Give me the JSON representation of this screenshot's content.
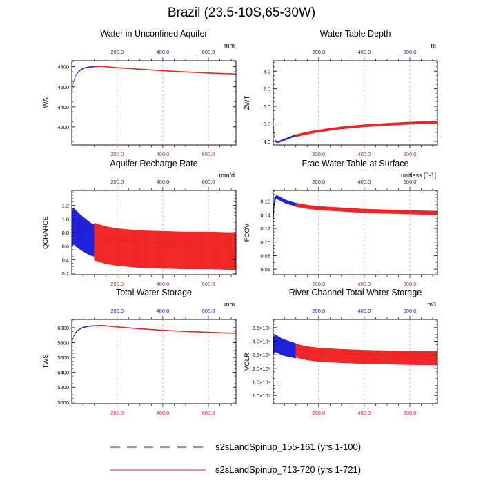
{
  "title": "Brazil (23.5-10S,65-30W)",
  "legend": {
    "items": [
      {
        "label": "s2sLandSpinup_155-161 (yrs 1-100)",
        "color": "#1a1adb",
        "dash": true
      },
      {
        "label": "s2sLandSpinup_713-720 (yrs 1-721)",
        "color": "#f02020",
        "dash": false
      }
    ]
  },
  "chart_data": [
    {
      "type": "line",
      "title": "Water in Unconfined Aquifer",
      "ylabel": "WA",
      "units": "mm",
      "xlim": [
        1,
        721
      ],
      "ylim": [
        4020,
        4860
      ],
      "yticks": [
        4200,
        4400,
        4600,
        4800
      ],
      "ytick_labels": [
        "4200",
        "4400",
        "4600",
        "4800"
      ],
      "top_ticks": [
        "200.0",
        "400.0",
        "600.0"
      ],
      "bottom_ticks": [
        "200.0",
        "400.0",
        "600.0"
      ],
      "series": [
        {
          "name": "s2sLandSpinup_155-161 (yrs 1-100)",
          "x": [
            1,
            5,
            10,
            20,
            30,
            45,
            60,
            80,
            100
          ],
          "y": [
            4520,
            4600,
            4660,
            4720,
            4750,
            4775,
            4790,
            4798,
            4800
          ]
        },
        {
          "name": "s2sLandSpinup_713-720 (yrs 1-721)",
          "x": [
            100,
            130,
            200,
            300,
            400,
            500,
            600,
            721
          ],
          "y": [
            4800,
            4805,
            4790,
            4775,
            4760,
            4748,
            4737,
            4727
          ]
        }
      ],
      "seasonal_amplitude": [
        0,
        0
      ]
    },
    {
      "type": "line",
      "title": "Water Table Depth",
      "ylabel": "ZWT",
      "units": "m",
      "xlim": [
        1,
        721
      ],
      "ylim": [
        3.8,
        8.6
      ],
      "yticks": [
        4.0,
        5.0,
        6.0,
        7.0,
        8.0
      ],
      "ytick_labels": [
        "4.0",
        "5.0",
        "6.0",
        "7.0",
        "8.0"
      ],
      "top_ticks": [
        "200.0",
        "400.0",
        "600.0"
      ],
      "bottom_ticks": [
        "200.0",
        "400.0",
        "600.0"
      ],
      "series": [
        {
          "name": "s2sLandSpinup_155-161 (yrs 1-100)",
          "x": [
            1,
            3,
            6,
            10,
            15,
            20,
            30,
            50,
            70,
            100
          ],
          "y": [
            5.9,
            4.8,
            4.3,
            4.05,
            3.98,
            3.97,
            4.0,
            4.1,
            4.2,
            4.35
          ]
        },
        {
          "name": "s2sLandSpinup_713-720 (yrs 1-721)",
          "x": [
            100,
            150,
            200,
            300,
            400,
            500,
            600,
            721
          ],
          "y": [
            4.35,
            4.5,
            4.62,
            4.8,
            4.92,
            5.0,
            5.07,
            5.12
          ]
        }
      ],
      "seasonal_amplitude": [
        0.05,
        0.1
      ]
    },
    {
      "type": "line",
      "title": "Aquifer Recharge Rate",
      "ylabel": "QCHARGE",
      "units": "mm/d",
      "xlim": [
        1,
        721
      ],
      "ylim": [
        0.18,
        1.42
      ],
      "yticks": [
        0.2,
        0.4,
        0.6,
        0.8,
        1.0,
        1.2
      ],
      "ytick_labels": [
        "0.2",
        "0.4",
        "0.6",
        "0.8",
        "1.0",
        "1.2"
      ],
      "top_ticks": [
        "200.0",
        "400.0",
        "600.0"
      ],
      "bottom_ticks": [
        "200.0",
        "400.0",
        "600.0"
      ],
      "series": [
        {
          "name": "s2sLandSpinup_155-161 (yrs 1-100)",
          "x": [
            1,
            10,
            20,
            40,
            60,
            80,
            100
          ],
          "y": [
            0.95,
            1.0,
            0.96,
            0.9,
            0.85,
            0.8,
            0.77
          ]
        },
        {
          "name": "s2sLandSpinup_713-720 (yrs 1-721)",
          "x": [
            100,
            150,
            200,
            300,
            400,
            500,
            600,
            721
          ],
          "y": [
            0.77,
            0.72,
            0.69,
            0.66,
            0.65,
            0.64,
            0.64,
            0.63
          ]
        }
      ],
      "seasonal_amplitude": [
        0.38,
        0.38
      ]
    },
    {
      "type": "line",
      "title": "Frac Water Table at Surface",
      "ylabel": "FCOV",
      "units": "unitless [0-1]",
      "xlim": [
        1,
        721
      ],
      "ylim": [
        0.052,
        0.176
      ],
      "yticks": [
        0.06,
        0.08,
        0.1,
        0.12,
        0.14,
        0.16
      ],
      "ytick_labels": [
        "0.06",
        "0.08",
        "0.10",
        "0.12",
        "0.14",
        "0.16"
      ],
      "top_ticks": [
        "200.0",
        "400.0",
        "600.0"
      ],
      "bottom_ticks": [
        "200.0",
        "400.0",
        "600.0"
      ],
      "series": [
        {
          "name": "s2sLandSpinup_155-161 (yrs 1-100)",
          "x": [
            1,
            3,
            6,
            10,
            15,
            25,
            40,
            60,
            80,
            100
          ],
          "y": [
            0.135,
            0.15,
            0.16,
            0.166,
            0.167,
            0.166,
            0.163,
            0.16,
            0.158,
            0.156
          ]
        },
        {
          "name": "s2sLandSpinup_713-720 (yrs 1-721)",
          "x": [
            100,
            150,
            200,
            300,
            400,
            500,
            600,
            721
          ],
          "y": [
            0.156,
            0.153,
            0.151,
            0.149,
            0.147,
            0.146,
            0.145,
            0.144
          ]
        }
      ],
      "seasonal_amplitude": [
        0.004,
        0.004
      ]
    },
    {
      "type": "line",
      "title": "Total Water Storage",
      "ylabel": "TWS",
      "units": "mm",
      "xlim": [
        1,
        721
      ],
      "ylim": [
        4980,
        6110
      ],
      "yticks": [
        5000,
        5200,
        5400,
        5600,
        5800,
        6000
      ],
      "ytick_labels": [
        "5000",
        "5200",
        "5400",
        "5600",
        "5800",
        "6000"
      ],
      "top_ticks": [
        "200.0",
        "400.0",
        "600.0"
      ],
      "bottom_ticks": [
        "200.0",
        "400.0",
        "600.0"
      ],
      "series": [
        {
          "name": "s2sLandSpinup_155-161 (yrs 1-100)",
          "x": [
            1,
            5,
            10,
            20,
            30,
            45,
            60,
            80,
            100
          ],
          "y": [
            5760,
            5840,
            5890,
            5940,
            5970,
            5995,
            6010,
            6020,
            6025
          ]
        },
        {
          "name": "s2sLandSpinup_713-720 (yrs 1-721)",
          "x": [
            100,
            130,
            200,
            300,
            400,
            500,
            600,
            721
          ],
          "y": [
            6025,
            6030,
            6010,
            5985,
            5965,
            5950,
            5938,
            5925
          ]
        }
      ],
      "seasonal_amplitude": [
        0.02,
        0.02
      ]
    },
    {
      "type": "line",
      "title": "River Channel Total Water Storage",
      "ylabel": "VOLR",
      "units": "m3",
      "xlim": [
        1,
        721
      ],
      "ylim": [
        700000000.0,
        3800000000.0
      ],
      "yticks": [
        1000000000.0,
        1500000000.0,
        2000000000.0,
        2500000000.0,
        3000000000.0,
        3500000000.0
      ],
      "ytick_labels": [
        "1.0×10⁹",
        "1.5×10⁹",
        "2.0×10⁹",
        "2.5×10⁹",
        "3.0×10⁹",
        "3.5×10⁹"
      ],
      "top_ticks": [
        "200.0",
        "400.0",
        "600.0"
      ],
      "bottom_ticks": [
        "200.0",
        "400.0",
        "600.0"
      ],
      "series": [
        {
          "name": "s2sLandSpinup_155-161 (yrs 1-100)",
          "x": [
            1,
            10,
            20,
            40,
            60,
            80,
            100
          ],
          "y": [
            2950000000.0,
            3050000000.0,
            3000000000.0,
            2900000000.0,
            2850000000.0,
            2800000000.0,
            2750000000.0
          ]
        },
        {
          "name": "s2sLandSpinup_713-720 (yrs 1-721)",
          "x": [
            100,
            150,
            200,
            300,
            400,
            500,
            600,
            721
          ],
          "y": [
            2750000000.0,
            2650000000.0,
            2600000000.0,
            2550000000.0,
            2520000000.0,
            2500000000.0,
            2480000000.0,
            2470000000.0
          ]
        }
      ],
      "seasonal_amplitude": [
        450000000.0,
        350000000.0
      ]
    }
  ]
}
